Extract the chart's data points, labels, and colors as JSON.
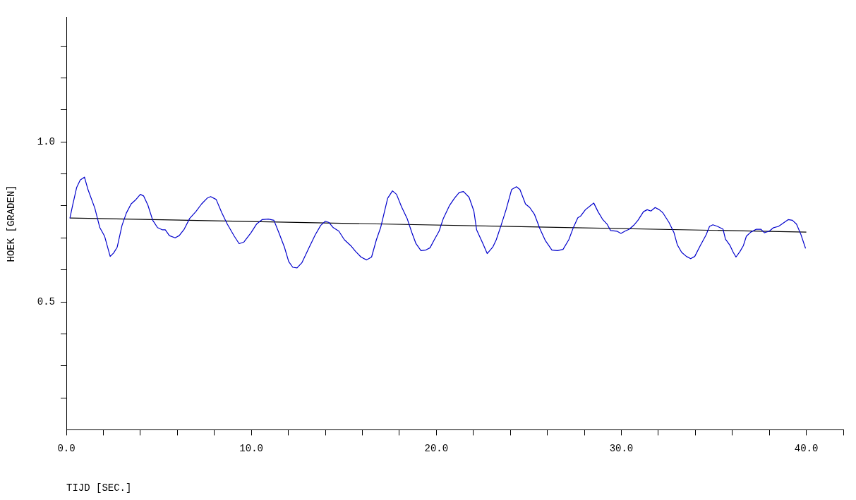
{
  "chart_data": {
    "type": "line",
    "xlabel": "TIJD [SEC.]",
    "ylabel": "HOEK [GRADEN]",
    "xlim": [
      0,
      42
    ],
    "ylim": [
      0.1,
      1.39
    ],
    "xticks": [
      {
        "value": 0,
        "label": "0.0"
      },
      {
        "value": 2,
        "label": null
      },
      {
        "value": 4,
        "label": null
      },
      {
        "value": 6,
        "label": null
      },
      {
        "value": 8,
        "label": null
      },
      {
        "value": 10,
        "label": "10.0"
      },
      {
        "value": 12,
        "label": null
      },
      {
        "value": 14,
        "label": null
      },
      {
        "value": 16,
        "label": null
      },
      {
        "value": 18,
        "label": null
      },
      {
        "value": 20,
        "label": "20.0"
      },
      {
        "value": 22,
        "label": null
      },
      {
        "value": 24,
        "label": null
      },
      {
        "value": 26,
        "label": null
      },
      {
        "value": 28,
        "label": null
      },
      {
        "value": 30,
        "label": "30.0"
      },
      {
        "value": 32,
        "label": null
      },
      {
        "value": 34,
        "label": null
      },
      {
        "value": 36,
        "label": null
      },
      {
        "value": 38,
        "label": null
      },
      {
        "value": 40,
        "label": "40.0"
      },
      {
        "value": 42,
        "label": null
      }
    ],
    "yticks": [
      {
        "value": 0.2,
        "label": null
      },
      {
        "value": 0.3,
        "label": null
      },
      {
        "value": 0.4,
        "label": null
      },
      {
        "value": 0.5,
        "label": "0.5"
      },
      {
        "value": 0.6,
        "label": null
      },
      {
        "value": 0.7,
        "label": null
      },
      {
        "value": 0.8,
        "label": null
      },
      {
        "value": 0.9,
        "label": null
      },
      {
        "value": 1.0,
        "label": "1.0"
      },
      {
        "value": 1.1,
        "label": null
      },
      {
        "value": 1.2,
        "label": null
      },
      {
        "value": 1.3,
        "label": null
      }
    ],
    "grid": false,
    "legend": false,
    "marker": "none",
    "line_style": "solid",
    "series": [
      {
        "color": "#0000cc",
        "x": [
          0.19,
          0.34,
          0.56,
          0.75,
          0.98,
          1.17,
          1.54,
          1.81,
          2.07,
          2.37,
          2.56,
          2.75,
          3.01,
          3.24,
          3.5,
          3.73,
          4.0,
          4.18,
          4.41,
          4.67,
          4.93,
          5.2,
          5.35,
          5.57,
          5.88,
          6.1,
          6.37,
          6.67,
          7.0,
          7.31,
          7.61,
          7.8,
          8.1,
          8.4,
          8.7,
          9.08,
          9.34,
          9.6,
          9.98,
          10.28,
          10.58,
          10.92,
          11.22,
          11.49,
          11.79,
          12.02,
          12.24,
          12.47,
          12.73,
          13.1,
          13.45,
          13.75,
          14.0,
          14.2,
          14.43,
          14.73,
          15.03,
          15.37,
          15.63,
          15.93,
          16.23,
          16.5,
          16.76,
          16.99,
          17.37,
          17.63,
          17.85,
          18.12,
          18.42,
          18.68,
          18.9,
          19.17,
          19.43,
          19.66,
          19.89,
          20.15,
          20.38,
          20.72,
          20.98,
          21.24,
          21.47,
          21.77,
          22.03,
          22.18,
          22.52,
          22.75,
          23.05,
          23.24,
          23.5,
          23.77,
          24.07,
          24.33,
          24.52,
          24.82,
          25.05,
          25.31,
          25.61,
          25.9,
          26.25,
          26.55,
          26.85,
          27.16,
          27.42,
          27.65,
          27.8,
          28.06,
          28.36,
          28.51,
          28.74,
          29.0,
          29.23,
          29.42,
          29.76,
          29.98,
          30.2,
          30.43,
          30.7,
          30.9,
          31.2,
          31.4,
          31.6,
          31.83,
          32.05,
          32.24,
          32.58,
          32.85,
          33.03,
          33.26,
          33.52,
          33.75,
          33.97,
          34.27,
          34.58,
          34.77,
          34.95,
          35.2,
          35.5,
          35.63,
          35.86,
          36.05,
          36.2,
          36.42,
          36.6,
          36.76,
          37.0,
          37.3,
          37.55,
          37.74,
          38.0,
          38.23,
          38.5,
          38.8,
          39.02,
          39.25,
          39.47,
          39.7,
          39.96
        ],
        "values": [
          0.761,
          0.802,
          0.858,
          0.881,
          0.89,
          0.851,
          0.793,
          0.732,
          0.705,
          0.642,
          0.653,
          0.671,
          0.739,
          0.777,
          0.806,
          0.818,
          0.836,
          0.831,
          0.802,
          0.755,
          0.732,
          0.725,
          0.725,
          0.707,
          0.7,
          0.707,
          0.727,
          0.761,
          0.782,
          0.806,
          0.824,
          0.829,
          0.82,
          0.779,
          0.743,
          0.705,
          0.682,
          0.687,
          0.716,
          0.743,
          0.757,
          0.759,
          0.755,
          0.716,
          0.671,
          0.626,
          0.608,
          0.606,
          0.622,
          0.667,
          0.709,
          0.739,
          0.752,
          0.748,
          0.732,
          0.721,
          0.694,
          0.676,
          0.658,
          0.64,
          0.631,
          0.64,
          0.694,
          0.732,
          0.824,
          0.847,
          0.836,
          0.797,
          0.761,
          0.716,
          0.682,
          0.66,
          0.662,
          0.669,
          0.694,
          0.721,
          0.761,
          0.802,
          0.824,
          0.842,
          0.845,
          0.827,
          0.784,
          0.725,
          0.682,
          0.651,
          0.671,
          0.694,
          0.739,
          0.788,
          0.851,
          0.86,
          0.851,
          0.806,
          0.795,
          0.773,
          0.727,
          0.691,
          0.662,
          0.66,
          0.664,
          0.694,
          0.734,
          0.763,
          0.768,
          0.788,
          0.802,
          0.809,
          0.782,
          0.757,
          0.743,
          0.723,
          0.721,
          0.714,
          0.721,
          0.727,
          0.741,
          0.755,
          0.782,
          0.788,
          0.784,
          0.795,
          0.788,
          0.779,
          0.748,
          0.716,
          0.678,
          0.655,
          0.642,
          0.635,
          0.642,
          0.676,
          0.709,
          0.736,
          0.741,
          0.736,
          0.727,
          0.696,
          0.678,
          0.655,
          0.64,
          0.658,
          0.676,
          0.705,
          0.718,
          0.727,
          0.727,
          0.716,
          0.721,
          0.732,
          0.736,
          0.748,
          0.757,
          0.755,
          0.743,
          0.712,
          0.667
        ]
      },
      {
        "color": "#000000",
        "x": [
          0.19,
          40.0
        ],
        "values": [
          0.762,
          0.718
        ]
      }
    ]
  }
}
